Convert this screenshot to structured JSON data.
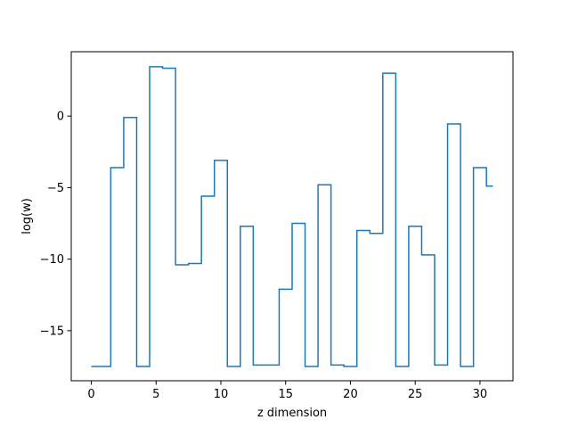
{
  "chart_data": {
    "type": "line",
    "step": "mid",
    "title": "",
    "xlabel": "z dimension",
    "ylabel": "log(w)",
    "xlim": [
      -1.55,
      32.55
    ],
    "ylim": [
      -18.5,
      4.5
    ],
    "xticks": [
      0,
      5,
      10,
      15,
      20,
      25,
      30
    ],
    "yticks": [
      -15,
      -10,
      -5,
      0
    ],
    "ytick_labels": [
      "−15",
      "−10",
      "−5",
      "0"
    ],
    "grid": false,
    "legend": "none",
    "series": [
      {
        "color": "#1f77b4",
        "x": [
          0,
          1,
          2,
          3,
          4,
          5,
          6,
          7,
          8,
          9,
          10,
          11,
          12,
          13,
          14,
          15,
          16,
          17,
          18,
          19,
          20,
          21,
          22,
          23,
          24,
          25,
          26,
          27,
          28,
          29,
          30,
          31
        ],
        "values": [
          -17.5,
          -17.5,
          -3.6,
          -0.1,
          -17.5,
          3.45,
          3.35,
          -10.4,
          -10.3,
          -5.6,
          -3.1,
          -17.5,
          -7.7,
          -17.4,
          -17.4,
          -12.1,
          -7.5,
          -17.5,
          -4.8,
          -17.4,
          -17.5,
          -8.0,
          -8.2,
          3.0,
          -17.5,
          -7.7,
          -9.7,
          -17.4,
          -0.55,
          -17.5,
          -3.6,
          -4.9
        ]
      }
    ]
  }
}
